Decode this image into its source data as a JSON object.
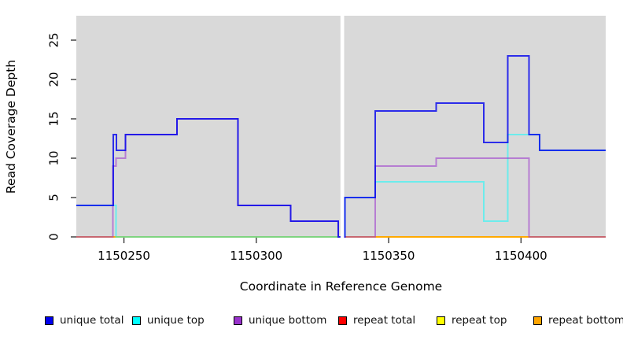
{
  "chart_data": {
    "type": "line",
    "subtype": "step-coverage",
    "title": "",
    "xlabel": "Coordinate in Reference Genome",
    "ylabel": "Read Coverage Depth",
    "xlim": [
      1150232,
      1150432
    ],
    "ylim": [
      0,
      28.1
    ],
    "xticks": [
      1150250,
      1150300,
      1150350,
      1150400
    ],
    "yticks": [
      0,
      5,
      10,
      15,
      20,
      25
    ],
    "panel_bg": "#d9d9d9",
    "grid": false,
    "gap_x": [
      1150331.8,
      1150333.2
    ],
    "legend_position": "bottom",
    "legend": [
      {
        "label": "unique total",
        "color": "#0000ee"
      },
      {
        "label": "unique top",
        "color": "#00ffff"
      },
      {
        "label": "unique bottom",
        "color": "#9932cc"
      },
      {
        "label": "repeat total",
        "color": "#ff0000"
      },
      {
        "label": "repeat top",
        "color": "#ffff00"
      },
      {
        "label": "repeat bottom",
        "color": "#ffa500"
      }
    ],
    "series": [
      {
        "name": "repeat total",
        "color": "#ff0000",
        "opacity": 1.0,
        "width": 2,
        "points": [
          [
            1150232,
            0
          ],
          [
            1150432,
            0
          ]
        ]
      },
      {
        "name": "repeat top",
        "color": "#ffff00",
        "opacity": 0.9,
        "width": 2,
        "points": [
          [
            1150232,
            0
          ],
          [
            1150432,
            0
          ]
        ]
      },
      {
        "name": "repeat bottom",
        "color": "#ffa500",
        "opacity": 0.95,
        "width": 2,
        "points": [
          [
            1150232,
            0
          ],
          [
            1150432,
            0
          ]
        ]
      },
      {
        "name": "unique top",
        "color": "#00ffff",
        "opacity": 0.5,
        "width": 2,
        "points": [
          [
            1150232,
            4
          ],
          [
            1150247,
            4
          ],
          [
            1150247,
            0
          ],
          [
            1150333.5,
            0
          ],
          [
            1150333.5,
            5
          ],
          [
            1150345,
            5
          ],
          [
            1150345,
            7
          ],
          [
            1150386,
            7
          ],
          [
            1150386,
            2
          ],
          [
            1150395,
            2
          ],
          [
            1150395,
            13
          ],
          [
            1150407,
            13
          ],
          [
            1150407,
            11
          ],
          [
            1150432,
            11
          ]
        ]
      },
      {
        "name": "unique bottom",
        "color": "#9932cc",
        "opacity": 0.55,
        "width": 2,
        "points": [
          [
            1150232,
            0
          ],
          [
            1150245.8,
            0
          ],
          [
            1150245.8,
            9
          ],
          [
            1150247,
            9
          ],
          [
            1150247,
            10
          ],
          [
            1150250.6,
            10
          ],
          [
            1150250.6,
            13
          ],
          [
            1150270,
            13
          ],
          [
            1150270,
            15
          ],
          [
            1150293,
            15
          ],
          [
            1150293,
            4
          ],
          [
            1150313,
            4
          ],
          [
            1150313,
            2
          ],
          [
            1150331,
            2
          ],
          [
            1150331,
            0
          ],
          [
            1150345,
            0
          ],
          [
            1150345,
            9
          ],
          [
            1150368,
            9
          ],
          [
            1150368,
            10
          ],
          [
            1150403,
            10
          ],
          [
            1150403,
            0
          ],
          [
            1150432,
            0
          ]
        ]
      },
      {
        "name": "unique total",
        "color": "#0000ee",
        "opacity": 0.8,
        "width": 2,
        "points": [
          [
            1150232,
            4
          ],
          [
            1150246,
            4
          ],
          [
            1150246,
            13
          ],
          [
            1150247.2,
            13
          ],
          [
            1150247.2,
            11
          ],
          [
            1150250.6,
            11
          ],
          [
            1150250.6,
            13
          ],
          [
            1150270,
            13
          ],
          [
            1150270,
            15
          ],
          [
            1150293,
            15
          ],
          [
            1150293,
            4
          ],
          [
            1150313,
            4
          ],
          [
            1150313,
            2
          ],
          [
            1150331,
            2
          ],
          [
            1150331,
            0
          ],
          [
            1150333.5,
            0
          ],
          [
            1150333.5,
            5
          ],
          [
            1150345,
            5
          ],
          [
            1150345,
            16
          ],
          [
            1150368,
            16
          ],
          [
            1150368,
            17
          ],
          [
            1150386,
            17
          ],
          [
            1150386,
            12
          ],
          [
            1150395,
            12
          ],
          [
            1150395,
            23
          ],
          [
            1150403,
            23
          ],
          [
            1150403,
            13
          ],
          [
            1150407,
            13
          ],
          [
            1150407,
            11
          ],
          [
            1150432,
            11
          ]
        ]
      }
    ]
  }
}
